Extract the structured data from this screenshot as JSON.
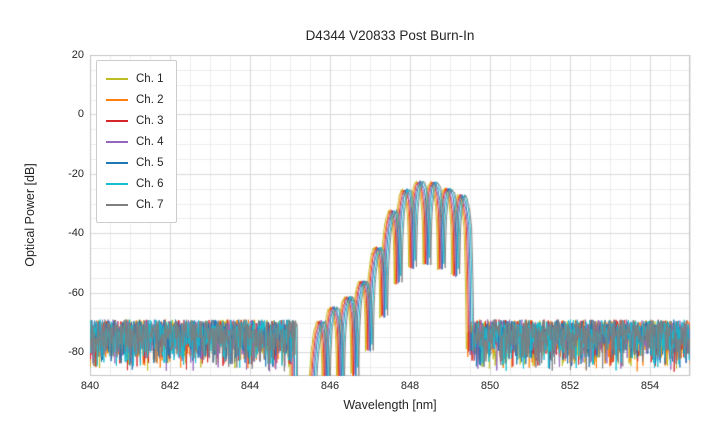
{
  "chart_data": {
    "type": "line",
    "title": "D4344 V20833 Post Burn-In",
    "xlabel": "Wavelength [nm]",
    "ylabel": "Optical Power [dB]",
    "xlim": [
      840,
      855
    ],
    "ylim": [
      -88,
      20
    ],
    "xticks": [
      840,
      842,
      844,
      846,
      848,
      850,
      852,
      854
    ],
    "yticks": [
      20,
      0,
      -20,
      -40,
      -60,
      -80
    ],
    "x_minor_step_nm": 0.5,
    "y_minor_step_db": 5,
    "grid": true,
    "legend_position": "upper left",
    "noise_top_db": -69,
    "noise_depth_db": 18,
    "gap_nm": [
      845.1,
      845.55
    ],
    "signal_band_nm": [
      845.55,
      849.58
    ],
    "ripple_period_nm": 0.36,
    "ripple_depth_db": 28,
    "envelope_db": [
      [
        845.55,
        -80
      ],
      [
        845.8,
        -68
      ],
      [
        846.1,
        -65
      ],
      [
        846.35,
        -63
      ],
      [
        846.6,
        -60
      ],
      [
        846.85,
        -56
      ],
      [
        847.1,
        -48
      ],
      [
        847.35,
        -40
      ],
      [
        847.6,
        -31
      ],
      [
        847.85,
        -26
      ],
      [
        848.1,
        -23.5
      ],
      [
        848.35,
        -22.5
      ],
      [
        848.6,
        -23
      ],
      [
        848.85,
        -24.5
      ],
      [
        849.1,
        -26
      ],
      [
        849.3,
        -27
      ],
      [
        849.45,
        -32
      ],
      [
        849.58,
        -75
      ]
    ],
    "series": [
      {
        "name": "Ch. 1",
        "color": "#bcbd22",
        "offset_nm": -0.1
      },
      {
        "name": "Ch. 2",
        "color": "#ff7f0e",
        "offset_nm": -0.07
      },
      {
        "name": "Ch. 3",
        "color": "#d62728",
        "offset_nm": -0.04
      },
      {
        "name": "Ch. 4",
        "color": "#9467bd",
        "offset_nm": -0.01
      },
      {
        "name": "Ch. 5",
        "color": "#1f77b4",
        "offset_nm": 0.02
      },
      {
        "name": "Ch. 6",
        "color": "#17becf",
        "offset_nm": 0.06
      },
      {
        "name": "Ch. 7",
        "color": "#7f7f7f",
        "offset_nm": 0.09
      }
    ],
    "axes_colors": {
      "grid_major": "#d9d9d9",
      "grid_minor": "#ededed",
      "border": "#c3c3c3",
      "text": "#262626"
    }
  }
}
